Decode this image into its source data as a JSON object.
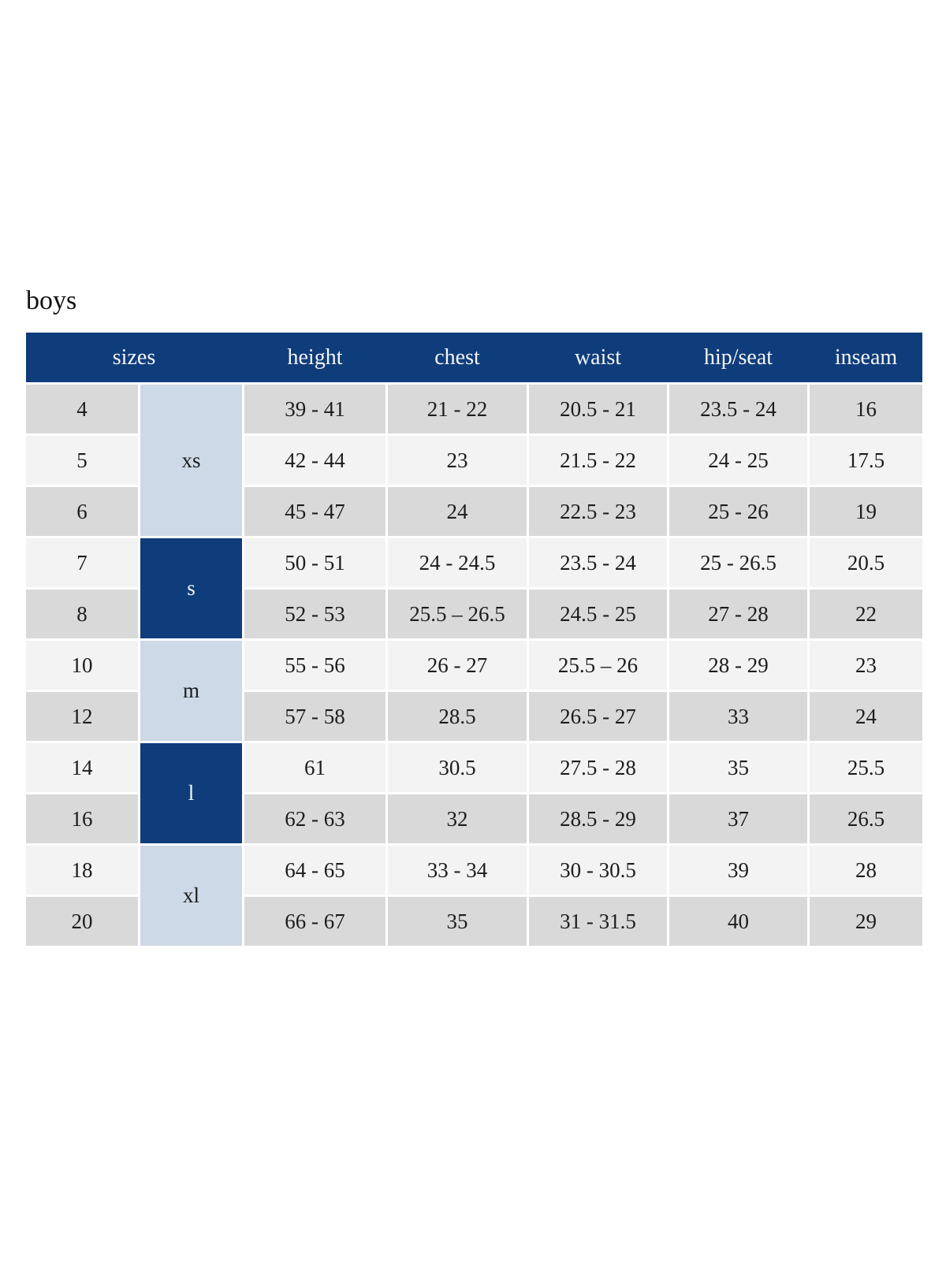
{
  "title": "boys",
  "columns": {
    "sizes": "sizes",
    "height": "height",
    "chest": "chest",
    "waist": "waist",
    "hip_seat": "hip/seat",
    "inseam": "inseam"
  },
  "groups": [
    {
      "label": "xs",
      "rows_spanned": [
        "4",
        "5",
        "6"
      ]
    },
    {
      "label": "s",
      "rows_spanned": [
        "7",
        "8"
      ]
    },
    {
      "label": "m",
      "rows_spanned": [
        "10",
        "12"
      ]
    },
    {
      "label": "l",
      "rows_spanned": [
        "14",
        "16"
      ]
    },
    {
      "label": "xl",
      "rows_spanned": [
        "18",
        "20"
      ]
    }
  ],
  "rows": [
    {
      "size": "4",
      "height": "39 - 41",
      "chest": "21 - 22",
      "waist": "20.5 - 21",
      "hip_seat": "23.5 - 24",
      "inseam": "16"
    },
    {
      "size": "5",
      "height": "42 - 44",
      "chest": "23",
      "waist": "21.5 - 22",
      "hip_seat": "24 - 25",
      "inseam": "17.5"
    },
    {
      "size": "6",
      "height": "45 - 47",
      "chest": "24",
      "waist": "22.5 - 23",
      "hip_seat": "25 - 26",
      "inseam": "19"
    },
    {
      "size": "7",
      "height": "50 - 51",
      "chest": "24 - 24.5",
      "waist": "23.5 - 24",
      "hip_seat": "25 - 26.5",
      "inseam": "20.5"
    },
    {
      "size": "8",
      "height": "52 - 53",
      "chest": "25.5 – 26.5",
      "waist": "24.5 - 25",
      "hip_seat": "27 - 28",
      "inseam": "22"
    },
    {
      "size": "10",
      "height": "55 - 56",
      "chest": "26 - 27",
      "waist": "25.5 – 26",
      "hip_seat": "28 - 29",
      "inseam": "23"
    },
    {
      "size": "12",
      "height": "57 - 58",
      "chest": "28.5",
      "waist": "26.5 - 27",
      "hip_seat": "33",
      "inseam": "24"
    },
    {
      "size": "14",
      "height": "61",
      "chest": "30.5",
      "waist": "27.5 - 28",
      "hip_seat": "35",
      "inseam": "25.5"
    },
    {
      "size": "16",
      "height": "62 - 63",
      "chest": "32",
      "waist": "28.5 - 29",
      "hip_seat": "37",
      "inseam": "26.5"
    },
    {
      "size": "18",
      "height": "64 - 65",
      "chest": "33 - 34",
      "waist": "30 - 30.5",
      "hip_seat": "39",
      "inseam": "28"
    },
    {
      "size": "20",
      "height": "66 - 67",
      "chest": "35",
      "waist": "31 - 31.5",
      "hip_seat": "40",
      "inseam": "29"
    }
  ],
  "colors": {
    "header_navy": "#0f3d7c",
    "group_light_blue": "#cdd9e7",
    "row_dark_gray": "#d9d9d9",
    "row_light_gray": "#f3f3f3",
    "header_text": "#f5f5f5",
    "body_text": "#1c1c1c"
  }
}
